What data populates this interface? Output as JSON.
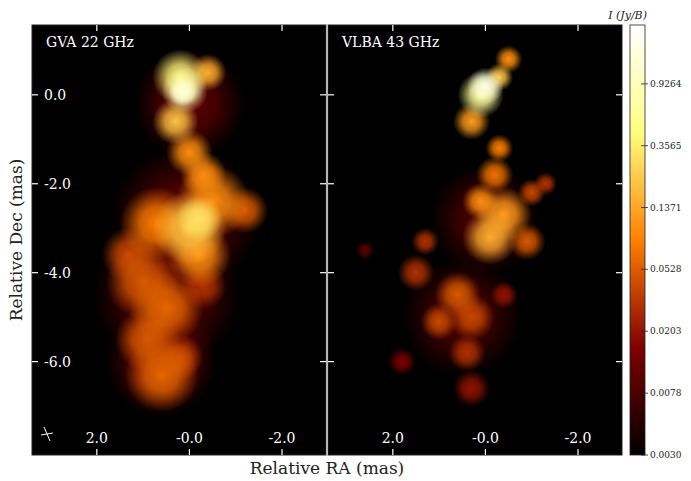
{
  "chart_data": {
    "type": "heatmap",
    "xlabel": "Relative RA (mas)",
    "ylabel": "Relative Dec (mas)",
    "colorbar": {
      "label": "I (Jy/B)",
      "range": [
        0.003,
        2.3
      ],
      "ticks": [
        {
          "value": 0.003,
          "label": "0.0030"
        },
        {
          "value": 0.0078,
          "label": "0.0078"
        },
        {
          "value": 0.0203,
          "label": "0.0203"
        },
        {
          "value": 0.0528,
          "label": "0.0528"
        },
        {
          "value": 0.1371,
          "label": "0.1371"
        },
        {
          "value": 0.3565,
          "label": "0.3565"
        },
        {
          "value": 0.9264,
          "label": "0.9264"
        }
      ]
    },
    "panels": [
      {
        "title": "GVA 22 GHz",
        "xlim": [
          3.4,
          -2.95
        ],
        "ylim": [
          -8.1,
          1.57
        ],
        "xticks": [
          {
            "value": 2,
            "label": "2.0"
          },
          {
            "value": 0,
            "label": "-0.0"
          },
          {
            "value": -2,
            "label": "-2.0"
          }
        ],
        "yticks": [
          {
            "value": 0,
            "label": "0.0"
          },
          {
            "value": -2,
            "label": "-2.0"
          },
          {
            "value": -4,
            "label": "-4.0"
          },
          {
            "value": -6,
            "label": "-6.0"
          }
        ],
        "tick_labels": true,
        "components": [
          {
            "x": 0.5,
            "y": -4.5,
            "r": 1.6,
            "peak": 0.01
          },
          {
            "x": 0.1,
            "y": -2.8,
            "r": 1.6,
            "peak": 0.01
          },
          {
            "x": 0.6,
            "y": -6.0,
            "r": 1.2,
            "peak": 0.012
          },
          {
            "x": 0.0,
            "y": -0.2,
            "r": 1.2,
            "peak": 0.01
          },
          {
            "x": -0.3,
            "y": -4.3,
            "r": 0.5,
            "peak": 0.03
          },
          {
            "x": 1.3,
            "y": -3.6,
            "r": 0.6,
            "peak": 0.04
          },
          {
            "x": 0.2,
            "y": -5.9,
            "r": 0.5,
            "peak": 0.04
          },
          {
            "x": 1.0,
            "y": -4.2,
            "r": 0.8,
            "peak": 0.05
          },
          {
            "x": 0.9,
            "y": -5.5,
            "r": 0.7,
            "peak": 0.05
          },
          {
            "x": -1.2,
            "y": -2.6,
            "r": 0.5,
            "peak": 0.05
          },
          {
            "x": 0.5,
            "y": -4.8,
            "r": 0.8,
            "peak": 0.06
          },
          {
            "x": 0.6,
            "y": -6.3,
            "r": 0.8,
            "peak": 0.06
          },
          {
            "x": 0.7,
            "y": -2.9,
            "r": 0.8,
            "peak": 0.08
          },
          {
            "x": -0.5,
            "y": -2.4,
            "r": 0.8,
            "peak": 0.1
          },
          {
            "x": -0.2,
            "y": -3.6,
            "r": 0.7,
            "peak": 0.1
          },
          {
            "x": 0.0,
            "y": -1.3,
            "r": 0.5,
            "peak": 0.1
          },
          {
            "x": -0.3,
            "y": -1.8,
            "r": 0.5,
            "peak": 0.1
          },
          {
            "x": -0.4,
            "y": 0.5,
            "r": 0.4,
            "peak": 0.15
          },
          {
            "x": 0.0,
            "y": -3.0,
            "r": 0.8,
            "peak": 0.2
          },
          {
            "x": 0.3,
            "y": -0.6,
            "r": 0.5,
            "peak": 0.2
          },
          {
            "x": -0.2,
            "y": -2.8,
            "r": 0.5,
            "peak": 0.3
          },
          {
            "x": 0.2,
            "y": 0.4,
            "r": 0.6,
            "peak": 0.4
          },
          {
            "x": 0.1,
            "y": 0.1,
            "r": 0.5,
            "peak": 0.9
          },
          {
            "x": 0.15,
            "y": 0.05,
            "r": 0.3,
            "peak": 1.3
          }
        ]
      },
      {
        "title": "VLBA 43 GHz",
        "xlim": [
          3.4,
          -2.95
        ],
        "ylim": [
          -8.1,
          1.57
        ],
        "xticks": [
          {
            "value": 2,
            "label": "2.0"
          },
          {
            "value": 0,
            "label": "-0.0"
          },
          {
            "value": -2,
            "label": "-2.0"
          }
        ],
        "yticks": [
          0,
          -2,
          -4,
          -6
        ],
        "tick_labels": "x",
        "components": [
          {
            "x": 0.5,
            "y": -5.0,
            "r": 1.3,
            "peak": 0.008
          },
          {
            "x": 0.0,
            "y": -2.8,
            "r": 1.2,
            "peak": 0.008
          },
          {
            "x": 2.6,
            "y": -3.5,
            "r": 0.2,
            "peak": 0.01
          },
          {
            "x": 1.8,
            "y": -6.0,
            "r": 0.3,
            "peak": 0.015
          },
          {
            "x": -0.4,
            "y": -4.5,
            "r": 0.3,
            "peak": 0.02
          },
          {
            "x": 0.3,
            "y": -6.6,
            "r": 0.4,
            "peak": 0.02
          },
          {
            "x": 1.3,
            "y": -3.3,
            "r": 0.3,
            "peak": 0.03
          },
          {
            "x": 1.5,
            "y": -4.0,
            "r": 0.4,
            "peak": 0.03
          },
          {
            "x": 0.4,
            "y": -5.8,
            "r": 0.4,
            "peak": 0.03
          },
          {
            "x": -1.3,
            "y": -2.0,
            "r": 0.25,
            "peak": 0.03
          },
          {
            "x": 0.3,
            "y": -5.0,
            "r": 0.5,
            "peak": 0.04
          },
          {
            "x": 1.0,
            "y": -5.1,
            "r": 0.4,
            "peak": 0.04
          },
          {
            "x": -1.0,
            "y": -2.2,
            "r": 0.3,
            "peak": 0.04
          },
          {
            "x": 0.6,
            "y": -4.5,
            "r": 0.5,
            "peak": 0.05
          },
          {
            "x": -0.9,
            "y": -3.3,
            "r": 0.4,
            "peak": 0.05
          },
          {
            "x": -0.2,
            "y": -1.8,
            "r": 0.4,
            "peak": 0.07
          },
          {
            "x": -0.3,
            "y": -1.2,
            "r": 0.3,
            "peak": 0.08
          },
          {
            "x": -0.5,
            "y": 0.8,
            "r": 0.3,
            "peak": 0.1
          },
          {
            "x": 0.1,
            "y": -2.4,
            "r": 0.4,
            "peak": 0.1
          },
          {
            "x": -0.4,
            "y": -2.7,
            "r": 0.6,
            "peak": 0.12
          },
          {
            "x": 0.3,
            "y": -0.6,
            "r": 0.4,
            "peak": 0.12
          },
          {
            "x": -0.1,
            "y": -3.2,
            "r": 0.6,
            "peak": 0.15
          },
          {
            "x": -0.3,
            "y": 0.4,
            "r": 0.3,
            "peak": 0.2
          },
          {
            "x": 0.1,
            "y": 0.0,
            "r": 0.5,
            "peak": 0.6
          },
          {
            "x": 0.0,
            "y": 0.2,
            "r": 0.4,
            "peak": 1.5
          }
        ]
      }
    ]
  }
}
